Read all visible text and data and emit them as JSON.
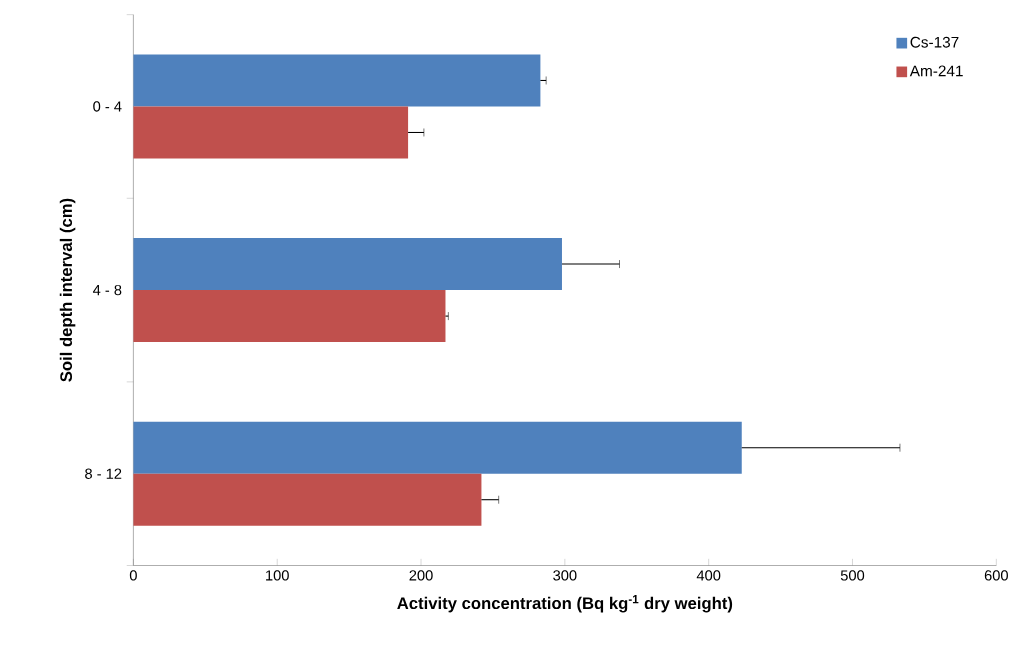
{
  "chart_data": {
    "type": "bar",
    "orientation": "horizontal",
    "xlabel": "Activity concentration (Bq kg$^{-1}$ dry weight)",
    "ylabel": "Soil depth interval (cm)",
    "categories": [
      "0 - 4",
      "4 - 8",
      "8 - 12"
    ],
    "series": [
      {
        "name": "Cs-137",
        "color": "#4f81bd",
        "values": [
          283,
          298,
          423
        ],
        "errors": [
          [
            283,
            287
          ],
          [
            298,
            338
          ],
          [
            423,
            533
          ]
        ]
      },
      {
        "name": "Am-241",
        "color": "#c0504d",
        "values": [
          191,
          217,
          242
        ],
        "errors": [
          [
            191,
            202
          ],
          [
            217,
            219
          ],
          [
            242,
            254
          ]
        ]
      }
    ],
    "xlim": [
      0,
      600
    ],
    "xticks": [
      0,
      100,
      200,
      300,
      400,
      500,
      600
    ],
    "grid": false,
    "legend": "top right"
  }
}
